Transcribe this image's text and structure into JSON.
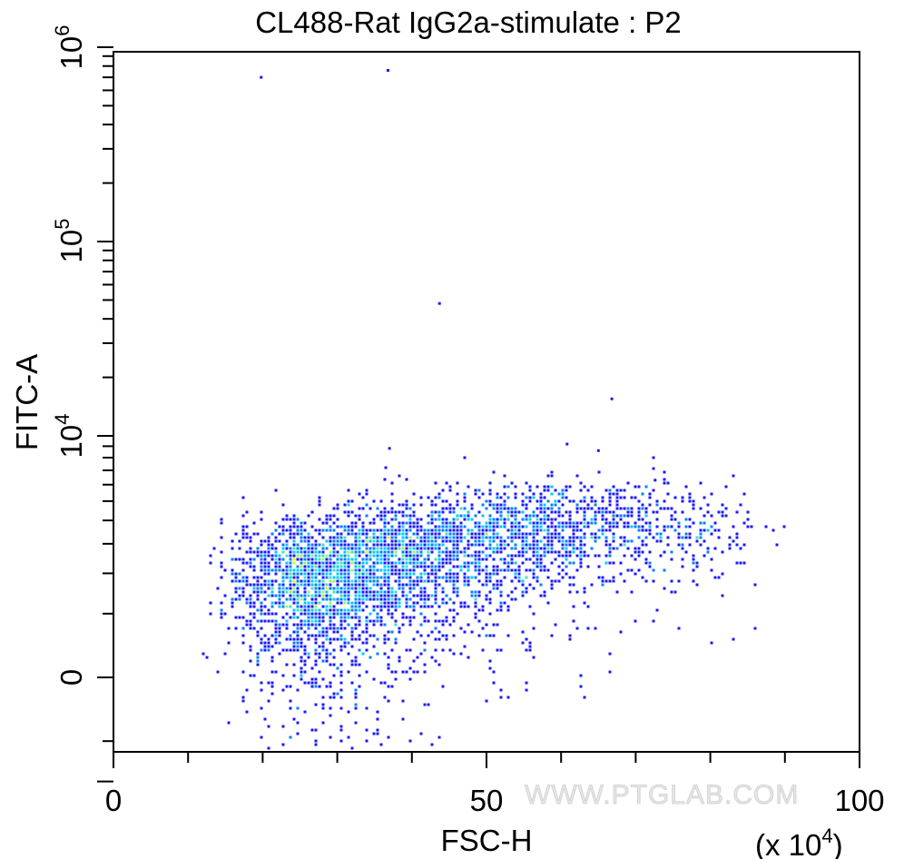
{
  "chart_data": {
    "type": "scatter",
    "title": "CL488-Rat IgG2a-stimulate : P2",
    "xlabel": "FSC-H",
    "ylabel": "FITC-A",
    "x_multiplier_label": "(x 10",
    "x_multiplier_exp": "4",
    "x_multiplier_close": ")",
    "xlim": [
      0,
      100
    ],
    "x_ticks": [
      "0",
      "50",
      "100"
    ],
    "y_scale": "biexponential",
    "y_ticks": [
      {
        "base": "0",
        "exp": ""
      },
      {
        "base": "10",
        "exp": "4"
      },
      {
        "base": "10",
        "exp": "5"
      },
      {
        "base": "10",
        "exp": "6"
      }
    ],
    "colormap": [
      "#1a1aff",
      "#0080ff",
      "#00c8ff",
      "#40e0c0",
      "#a0f060",
      "#e0f020"
    ],
    "outliers": [
      {
        "x": 19.8,
        "y": 700000
      },
      {
        "x": 36.8,
        "y": 760000
      },
      {
        "x": 43.7,
        "y": 48000
      },
      {
        "x": 66.8,
        "y": 15500
      },
      {
        "x": 37.0,
        "y": 8800
      },
      {
        "x": 36.5,
        "y": 7200
      },
      {
        "x": 60.8,
        "y": 9200
      },
      {
        "x": 65.0,
        "y": 8600
      },
      {
        "x": 72.6,
        "y": 6300
      }
    ],
    "clusters": [
      {
        "x": 26,
        "sx": 5.5,
        "y": 1600,
        "sy": 900,
        "n": 1500
      },
      {
        "x": 36,
        "sx": 6,
        "y": 2200,
        "sy": 1000,
        "n": 1100
      },
      {
        "x": 48,
        "sx": 7,
        "y": 2900,
        "sy": 1100,
        "n": 900
      },
      {
        "x": 62,
        "sx": 7.5,
        "y": 3600,
        "sy": 1100,
        "n": 650
      },
      {
        "x": 77,
        "sx": 5.5,
        "y": 3500,
        "sy": 900,
        "n": 160
      }
    ]
  },
  "watermark": "WWW.PTGLAB.COM"
}
